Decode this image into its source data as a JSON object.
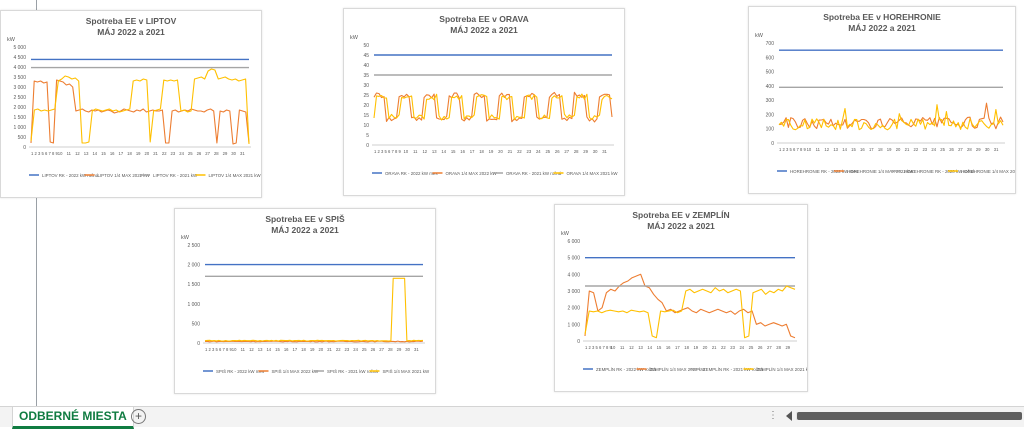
{
  "sheet": {
    "tab_label": "ODBERNÉ MIESTA",
    "add_icon": "plus-circle-icon",
    "dots_icon": "vertical-ellipsis-icon"
  },
  "colors": {
    "rk2022": "#4472c4",
    "max2022": "#ed7d31",
    "rk2021": "#a5a5a5",
    "max2021": "#ffc000"
  },
  "chart_data": [
    {
      "type": "line",
      "id": "liptov",
      "title": "Spotreba EE v LIPTOV",
      "subtitle": "MÁJ 2022 a 2021",
      "ylabel": "kW",
      "ylim": [
        0,
        5000
      ],
      "yticks": [
        "0",
        "500",
        "1 000",
        "1 500",
        "2 000",
        "2 500",
        "3 000",
        "3 500",
        "4 000",
        "4 500",
        "5 000"
      ],
      "xticks": [
        "1 2 3 5 6 7 8 9",
        "10",
        "11",
        "12",
        "13",
        "14",
        "15",
        "16",
        "17",
        "18",
        "19",
        "20",
        "21",
        "22",
        "23",
        "24",
        "25",
        "26",
        "27",
        "28",
        "29",
        "30",
        "31"
      ],
      "x_count": 96,
      "series": [
        {
          "name": "LIPTOV RK - 2022 kW ročná",
          "color": "#4472c4",
          "const": 4380
        },
        {
          "name": "LIPTOV 1/4 MAX 2022 kW",
          "color": "#ed7d31",
          "values": [
            200,
            3300,
            3250,
            3300,
            3200,
            3250,
            250,
            200,
            3350,
            3300,
            3250,
            3100,
            3150,
            3000,
            1800,
            1850,
            1900,
            1800,
            1750,
            1850,
            1800,
            1850,
            1750,
            1800,
            1850,
            1800,
            1700,
            1750,
            1800,
            1900,
            1850,
            1800,
            1750,
            1850,
            1800,
            1900,
            1750,
            1800,
            1850,
            1800,
            1800,
            1850,
            200,
            200,
            1800,
            1850,
            1750,
            1800,
            1850,
            1800,
            1900,
            1850,
            1800,
            1800,
            1750,
            1850,
            1900,
            1800,
            200,
            1800,
            1750,
            1850,
            1800,
            150,
            200,
            1850,
            1800,
            1750,
            200
          ]
        },
        {
          "name": "LIPTOV RK - 2021 kW",
          "color": "#a5a5a5",
          "const": 3970
        },
        {
          "name": "LIPTOV 1/4 MAX 2021 kW",
          "color": "#ffc000",
          "values": [
            300,
            1850,
            1900,
            1800,
            1850,
            1800,
            1850,
            1900,
            3300,
            3400,
            3550,
            3500,
            3400,
            3450,
            3300,
            200,
            200,
            250,
            1800,
            1900,
            1850,
            1800,
            1850,
            1900,
            1800,
            1850,
            1750,
            1800,
            1850,
            1900,
            3300,
            3350,
            3300,
            3400,
            3350,
            250,
            1800,
            1850,
            1900,
            3350,
            3300,
            3350,
            3300,
            3350,
            1800,
            1850,
            1750,
            1800,
            3400,
            3450,
            3500,
            3400,
            3800,
            3900,
            3850,
            3400,
            3450,
            3500,
            3400,
            3350,
            3400,
            3300,
            3350,
            3400,
            150
          ]
        }
      ],
      "legend": [
        "LIPTOV RK - 2022 kW ročná",
        "LIPTOV 1/4 MAX 2022 kW",
        "LIPTOV RK - 2021 kW",
        "LIPTOV 1/4 MAX 2021 kW"
      ]
    },
    {
      "type": "line",
      "id": "orava",
      "title": "Spotreba EE v ORAVA",
      "subtitle": "MÁJ 2022 a 2021",
      "ylabel": "kW",
      "ylim": [
        0,
        50
      ],
      "yticks": [
        "0",
        "5",
        "10",
        "15",
        "20",
        "25",
        "30",
        "35",
        "40",
        "45",
        "50"
      ],
      "xticks": [
        "1 2 3 5 6 7 8 9",
        "10",
        "11",
        "12",
        "13",
        "14",
        "15",
        "16",
        "17",
        "18",
        "19",
        "20",
        "21",
        "22",
        "23",
        "24",
        "25",
        "26",
        "27",
        "28",
        "29",
        "30",
        "31"
      ],
      "x_count": 96,
      "series": [
        {
          "name": "ORAVA RK - 2022 kW mes",
          "color": "#4472c4",
          "const": 45
        },
        {
          "name": "ORAVA 1/4 MAX 2022 kW",
          "color": "#ed7d31",
          "wave": [
            13,
            25,
            1.6,
            0.4
          ]
        },
        {
          "name": "ORAVA RK - 2021 kW ročná",
          "color": "#a5a5a5",
          "const": 35
        },
        {
          "name": "ORAVA 1/4 MAX 2021 kW",
          "color": "#ffc000",
          "wave": [
            14,
            24,
            1.6,
            0.0
          ]
        }
      ],
      "legend": [
        "ORAVA RK - 2022 kW mes",
        "ORAVA 1/4 MAX 2022 kW",
        "ORAVA RK - 2021 kW ročná",
        "ORAVA 1/4 MAX 2021 kW"
      ]
    },
    {
      "type": "line",
      "id": "horehronie",
      "title": "Spotreba EE v HOREHRONIE",
      "subtitle": "MÁJ 2022 a 2021",
      "ylabel": "kW",
      "ylim": [
        0,
        700
      ],
      "yticks": [
        "0",
        "100",
        "200",
        "300",
        "400",
        "500",
        "600",
        "700"
      ],
      "xticks": [
        "1 2 3 5 6 7 8 9",
        "10",
        "11",
        "12",
        "13",
        "14",
        "15",
        "16",
        "17",
        "18",
        "19",
        "20",
        "21",
        "22",
        "23",
        "24",
        "25",
        "26",
        "27",
        "28",
        "29",
        "30",
        "31"
      ],
      "x_count": 96,
      "series": [
        {
          "name": "HOREHRONIE RK - 2022 kW mes",
          "color": "#4472c4",
          "const": 650
        },
        {
          "name": "HOREHRONIE 1/4 MAX 2022 kW",
          "color": "#ed7d31",
          "noise": [
            100,
            180
          ]
        },
        {
          "name": "HOREHRONIE RK - 2020 kW ročná",
          "color": "#a5a5a5",
          "const": 390
        },
        {
          "name": "HOREHRONIE 1/4 MAX 2021 kW",
          "color": "#ffc000",
          "noise": [
            90,
            170
          ]
        }
      ],
      "legend": [
        "HOREHRONIE RK - 2022 kW mes",
        "HOREHRONIE 1/4 MAX 2022 kW",
        "HOREHRONIE RK - 2020 kW ročná",
        "HOREHRONIE 1/4 MAX 2021 kW"
      ]
    },
    {
      "type": "line",
      "id": "spis",
      "title": "Spotreba EE v SPIŠ",
      "subtitle": "MÁJ 2022 a 2021",
      "ylabel": "kW",
      "ylim": [
        0,
        2500
      ],
      "yticks": [
        "0",
        "500",
        "1 000",
        "1 500",
        "2 000",
        "2 500"
      ],
      "xticks": [
        "1 2 3 5 6 7 8 9",
        "10",
        "11",
        "12",
        "13",
        "14",
        "15",
        "16",
        "17",
        "18",
        "19",
        "20",
        "21",
        "22",
        "23",
        "24",
        "25",
        "26",
        "27",
        "28",
        "29",
        "30",
        "31"
      ],
      "x_count": 96,
      "series": [
        {
          "name": "SPIŠ RK - 2022 kW mes",
          "color": "#4472c4",
          "const": 2000
        },
        {
          "name": "SPIŠ 1/4 MAX 2022 kW",
          "color": "#ed7d31",
          "flat": 40
        },
        {
          "name": "SPIŠ RK - 2021 kW ročná",
          "color": "#a5a5a5",
          "const": 1700
        },
        {
          "name": "SPIŠ 1/4 MAX 2021 kW",
          "color": "#ffc000",
          "flat": 60,
          "spike": [
            0.86,
            0.92,
            1650
          ]
        }
      ],
      "legend": [
        "SPIŠ RK - 2022 kW mes",
        "SPIŠ 1/4 MAX 2022 kW",
        "SPIŠ RK - 2021 kW ročná",
        "SPIŠ 1/4 MAX 2021 kW"
      ]
    },
    {
      "type": "line",
      "id": "zemplin",
      "title": "Spotreba EE v ZEMPLÍN",
      "subtitle": "MÁJ 2022 a 2021",
      "ylabel": "kW",
      "ylim": [
        0,
        6000
      ],
      "yticks": [
        "0",
        "1 000",
        "2 000",
        "3 000",
        "4 000",
        "5 000",
        "6 000"
      ],
      "xticks": [
        "1 2 3 5 6 7 8 9",
        "10",
        "11",
        "12",
        "13",
        "14",
        "15",
        "16",
        "17",
        "18",
        "19",
        "20",
        "21",
        "22",
        "23",
        "24",
        "25",
        "26",
        "27",
        "28",
        "29"
      ],
      "x_count": 96,
      "series": [
        {
          "name": "ZEMPLÍN RK - 2022 kW ročná",
          "color": "#4472c4",
          "const": 5000
        },
        {
          "name": "ZEMPLÍN 1/4 MAX 2022 kW",
          "color": "#ed7d31",
          "values": [
            300,
            3000,
            2900,
            1800,
            2000,
            2900,
            3100,
            3000,
            3300,
            3500,
            3600,
            3800,
            3900,
            4000,
            3300,
            3200,
            2800,
            2500,
            2300,
            1800,
            1900,
            1700,
            1800,
            1900,
            2000,
            1800,
            1700,
            1900,
            1800,
            1700,
            1800,
            1900,
            1800,
            1700,
            1800,
            1600,
            1800,
            1900,
            1700,
            1800,
            1000,
            1100,
            900,
            1000,
            1100,
            1000,
            900,
            1000,
            300,
            200
          ]
        },
        {
          "name": "ZEMPLÍN RK - 2021 kW ročná",
          "color": "#a5a5a5",
          "const": 3300
        },
        {
          "name": "ZEMPLÍN 1/4 MAX 2021 kW",
          "color": "#ffc000",
          "values": [
            400,
            1800,
            1750,
            1800,
            1700,
            1800,
            1850,
            1800,
            1750,
            1800,
            1700,
            1850,
            1800,
            1750,
            1800,
            1700,
            300,
            200,
            1800,
            1750,
            1800,
            1850,
            1700,
            1800,
            3000,
            3100,
            2900,
            3000,
            3100,
            3000,
            2900,
            3200,
            3000,
            3100,
            2900,
            3000,
            3100,
            3000,
            200,
            300,
            2900,
            3000,
            3100,
            2800,
            3000,
            2900,
            3100,
            3000,
            3300,
            3200,
            3100
          ]
        }
      ],
      "legend": [
        "ZEMPLÍN RK - 2022 kW ročná",
        "ZEMPLÍN 1/4 MAX 2022 kW",
        "ZEMPLÍN RK - 2021 kW ročná",
        "ZEMPLÍN 1/4 MAX 2021 kW"
      ]
    }
  ]
}
